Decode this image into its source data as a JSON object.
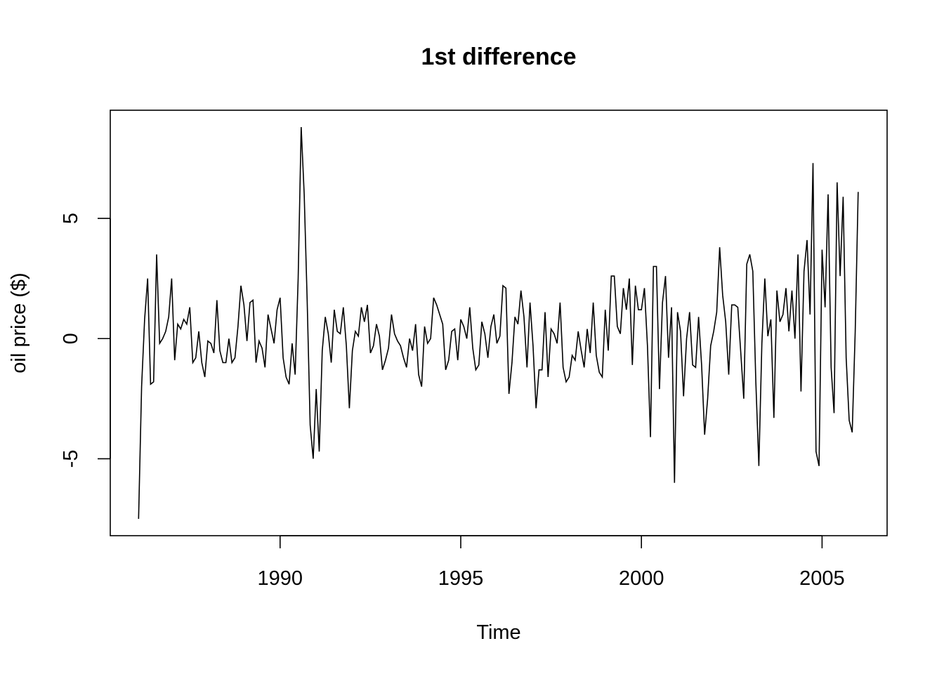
{
  "chart_data": {
    "type": "line",
    "title": "1st difference",
    "xlabel": "Time",
    "ylabel": "oil price ($)",
    "xlim": [
      1985.3,
      2006.8
    ],
    "ylim": [
      -8.2,
      9.5
    ],
    "x_ticks": [
      1990,
      1995,
      2000,
      2005
    ],
    "x_tick_labels": [
      "1990",
      "1995",
      "2000",
      "2005"
    ],
    "y_ticks": [
      -5,
      0,
      5
    ],
    "y_tick_labels": [
      "-5",
      "0",
      "5"
    ],
    "grid": false,
    "legend": "none",
    "line_color": "#000000",
    "x_start": 1986.0833,
    "x_step": 0.083333,
    "values": [
      -7.5,
      -2.0,
      0.8,
      2.5,
      -1.9,
      -1.8,
      3.5,
      -0.2,
      0.0,
      0.3,
      0.9,
      2.5,
      -0.9,
      0.6,
      0.4,
      0.8,
      0.6,
      1.3,
      -1.0,
      -0.8,
      0.3,
      -1.0,
      -1.6,
      -0.1,
      -0.2,
      -0.6,
      1.6,
      -0.5,
      -1.0,
      -1.0,
      0.0,
      -1.0,
      -0.8,
      0.5,
      2.2,
      1.4,
      -0.1,
      1.5,
      1.6,
      -1.0,
      -0.1,
      -0.4,
      -1.2,
      1.0,
      0.4,
      -0.2,
      1.2,
      1.7,
      -0.8,
      -1.6,
      -1.9,
      -0.2,
      -1.5,
      2.5,
      8.8,
      6.0,
      1.5,
      -3.6,
      -5.0,
      -2.1,
      -4.7,
      -0.5,
      0.9,
      0.2,
      -1.0,
      1.2,
      0.3,
      0.2,
      1.3,
      -0.3,
      -2.9,
      -0.5,
      0.3,
      0.1,
      1.3,
      0.7,
      1.4,
      -0.6,
      -0.3,
      0.6,
      0.1,
      -1.3,
      -0.9,
      -0.4,
      1.0,
      0.2,
      -0.1,
      -0.3,
      -0.8,
      -1.2,
      0.0,
      -0.5,
      0.6,
      -1.5,
      -2.0,
      0.5,
      -0.2,
      0.0,
      1.7,
      1.4,
      1.0,
      0.6,
      -1.3,
      -0.9,
      0.3,
      0.4,
      -0.9,
      0.8,
      0.5,
      0.0,
      1.3,
      -0.4,
      -1.3,
      -1.1,
      0.7,
      0.2,
      -0.8,
      0.5,
      1.0,
      -0.2,
      0.1,
      2.2,
      2.1,
      -2.3,
      -1.0,
      0.9,
      0.6,
      2.0,
      0.9,
      -1.2,
      1.5,
      -0.3,
      -2.9,
      -1.3,
      -1.3,
      1.1,
      -1.6,
      0.4,
      0.2,
      -0.2,
      1.5,
      -1.2,
      -1.8,
      -1.6,
      -0.7,
      -0.9,
      0.3,
      -0.5,
      -1.2,
      0.4,
      -0.6,
      1.5,
      -0.7,
      -1.4,
      -1.6,
      1.2,
      -0.5,
      2.6,
      2.6,
      0.5,
      0.2,
      2.1,
      1.2,
      2.5,
      -1.1,
      2.2,
      1.2,
      1.2,
      2.1,
      -0.3,
      -4.1,
      3.0,
      3.0,
      -2.1,
      1.5,
      2.6,
      -0.8,
      1.3,
      -6.0,
      1.1,
      0.3,
      -2.4,
      0.0,
      1.1,
      -1.1,
      -1.2,
      0.9,
      -1.1,
      -4.0,
      -2.5,
      -0.3,
      0.3,
      1.1,
      3.8,
      1.8,
      0.7,
      -1.5,
      1.4,
      1.4,
      1.3,
      -0.6,
      -2.5,
      3.1,
      3.5,
      2.8,
      -1.8,
      -5.3,
      -0.2,
      2.5,
      0.1,
      0.8,
      -3.3,
      2.0,
      0.7,
      1.0,
      2.1,
      0.3,
      2.0,
      0.0,
      3.5,
      -2.2,
      2.8,
      4.1,
      1.0,
      7.3,
      -4.7,
      -5.3,
      3.7,
      1.3,
      6.0,
      -1.2,
      -3.1,
      6.5,
      2.6,
      5.9,
      -0.8,
      -3.4,
      -3.9,
      0.3,
      6.1
    ]
  }
}
